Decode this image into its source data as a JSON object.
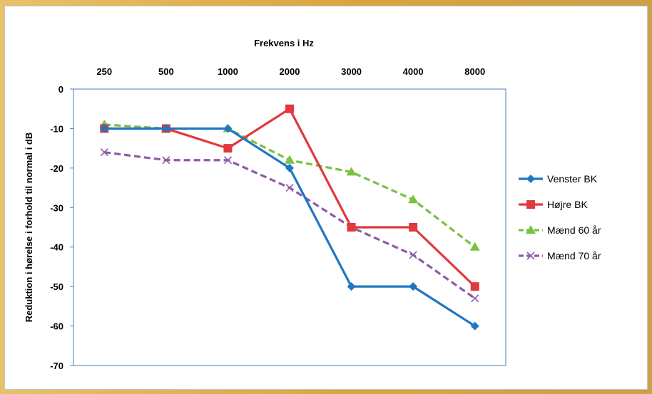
{
  "chart_data": {
    "type": "line",
    "title": "",
    "xlabel": "Frekvens i Hz",
    "ylabel": "Reduktion i hørelse i forhold til normal i dB",
    "categories": [
      "250",
      "500",
      "1000",
      "2000",
      "3000",
      "4000",
      "8000"
    ],
    "ylim": [
      -70,
      0
    ],
    "yticks": [
      0,
      -10,
      -20,
      -30,
      -40,
      -50,
      -60,
      -70
    ],
    "x_axis_position": "top",
    "grid": false,
    "legend_position": "right",
    "series": [
      {
        "name": "Venster BK",
        "values": [
          -10,
          -10,
          -10,
          -20,
          -50,
          -50,
          -60
        ],
        "color": "#1f77c4",
        "marker": "diamond",
        "dash": "solid"
      },
      {
        "name": "Højre BK",
        "values": [
          -10,
          -10,
          -15,
          -5,
          -35,
          -35,
          -50
        ],
        "color": "#e0393e",
        "marker": "square",
        "dash": "solid"
      },
      {
        "name": "Mænd 60 år",
        "values": [
          -9,
          -10,
          -10,
          -18,
          -21,
          -28,
          -40
        ],
        "color": "#7ac143",
        "marker": "triangle",
        "dash": "dashed"
      },
      {
        "name": "Mænd 70 år",
        "values": [
          -16,
          -18,
          -18,
          -25,
          -35,
          -42,
          -53
        ],
        "color": "#8e5ba6",
        "marker": "cross",
        "dash": "dashed"
      }
    ]
  }
}
